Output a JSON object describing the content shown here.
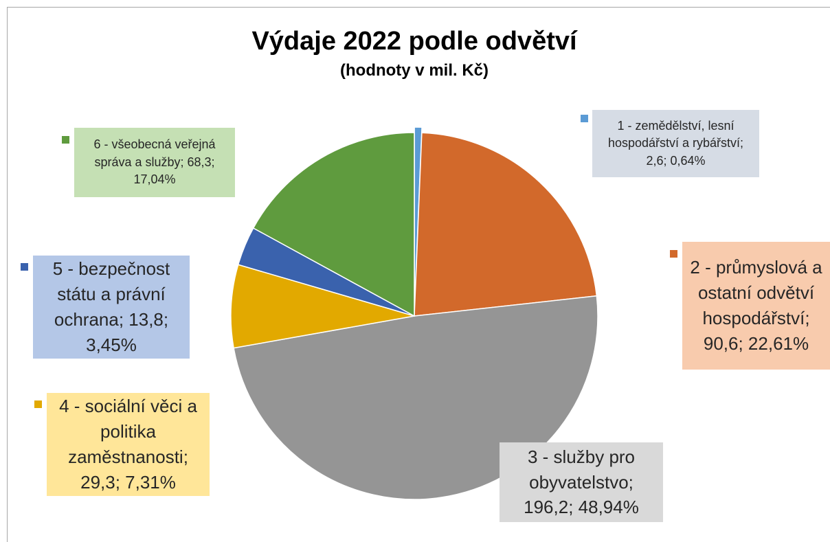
{
  "chart_data": {
    "type": "pie",
    "title": "Výdaje 2022 podle odvětví",
    "subtitle": "(hodnoty  v mil. Kč)",
    "values": [
      2.6,
      90.6,
      196.2,
      29.3,
      13.8,
      68.3
    ],
    "value_labels": [
      "1 - zemědělství, lesní hospodářství a rybářství; 2,6; 0,64%",
      "2 - průmyslová a ostatní odvětví hospodářství; 90,6; 22,61%",
      "3 - služby pro obyvatelstvo; 196,2; 48,94%",
      "4 - sociální věci a politika zaměstnanosti; 29,3; 7,31%",
      "5 - bezpečnost státu a právní ochrana; 13,8; 3,45%",
      "6 - všeobecná veřejná správa a služby; 68,3; 17,04%"
    ],
    "colors": [
      "#5b9bd5",
      "#d2692b",
      "#959595",
      "#e2a900",
      "#3a62ad",
      "#5f9b3e"
    ]
  }
}
